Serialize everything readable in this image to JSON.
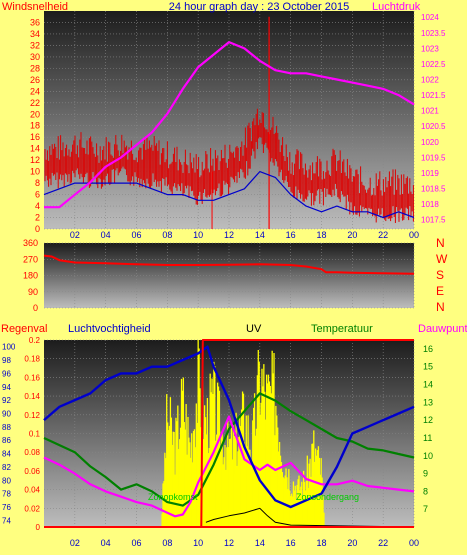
{
  "header": {
    "left_label": "Windsnelheid",
    "title": "24 hour graph day : 23 October 2015",
    "right_label": "Luchtdruk"
  },
  "hour_ticks": [
    "02",
    "04",
    "06",
    "08",
    "10",
    "12",
    "14",
    "16",
    "18",
    "20",
    "22",
    "00"
  ],
  "colors": {
    "background": "#ffff80",
    "wind": "#ff0000",
    "gust_bar": "#dd0000",
    "pressure": "#ff00ff",
    "blue": "#0000cc",
    "temperature": "#008000",
    "dewpoint": "#ff00ff",
    "uv": "#ffff00",
    "solar": "#000000"
  },
  "chart_data": [
    {
      "type": "line",
      "name": "wind-pressure",
      "x_range": [
        0,
        24
      ],
      "y_left": {
        "label": "Windsnelheid",
        "range": [
          0,
          38
        ],
        "ticks": [
          "0",
          "2",
          "4",
          "6",
          "8",
          "10",
          "12",
          "14",
          "16",
          "18",
          "20",
          "22",
          "24",
          "26",
          "28",
          "30",
          "32",
          "34",
          "36"
        ]
      },
      "y_right": {
        "label": "Luchtdruk",
        "range": [
          1017.2,
          1024.2
        ],
        "ticks": [
          "1017.5",
          "1018",
          "1018.5",
          "1019",
          "1019.5",
          "1020",
          "1020.5",
          "1021",
          "1021.5",
          "1022",
          "1022.5",
          "1023",
          "1023.5",
          "1024"
        ]
      },
      "series": [
        {
          "key": "wind_gust",
          "axis": "left",
          "x": [
            0,
            1,
            2,
            3,
            4,
            5,
            6,
            7,
            8,
            9,
            10,
            11,
            12,
            13,
            14,
            15,
            16,
            17,
            18,
            19,
            20,
            21,
            22,
            23,
            24
          ],
          "y": [
            13,
            13,
            14,
            13,
            13,
            14,
            13,
            13,
            12,
            11,
            10,
            11,
            12,
            14,
            20,
            16,
            11,
            10,
            10,
            11,
            8,
            7,
            7,
            7,
            7
          ]
        },
        {
          "key": "wind_avg",
          "axis": "left",
          "x": [
            0,
            1,
            2,
            3,
            4,
            5,
            6,
            7,
            8,
            9,
            10,
            11,
            12,
            13,
            14,
            15,
            16,
            17,
            18,
            19,
            20,
            21,
            22,
            23,
            24
          ],
          "y": [
            6,
            7,
            8,
            8,
            8,
            8,
            8,
            7,
            6,
            6,
            5,
            5,
            6,
            7,
            10,
            9,
            6,
            4,
            3,
            4,
            3,
            3,
            2,
            3,
            2
          ]
        },
        {
          "key": "pressure",
          "axis": "right",
          "x": [
            0,
            1,
            2,
            3,
            4,
            5,
            6,
            7,
            8,
            9,
            10,
            11,
            12,
            13,
            14,
            15,
            16,
            17,
            18,
            19,
            20,
            21,
            22,
            23,
            24
          ],
          "y": [
            1017.9,
            1017.9,
            1018.3,
            1018.7,
            1019.2,
            1019.5,
            1019.9,
            1020.3,
            1020.9,
            1021.7,
            1022.4,
            1022.8,
            1023.2,
            1023.0,
            1022.6,
            1022.3,
            1022.2,
            1022.2,
            1022.1,
            1022.0,
            1021.9,
            1021.8,
            1021.7,
            1021.5,
            1021.2
          ]
        }
      ],
      "gust_max": {
        "x": 14.6,
        "y": 37
      }
    },
    {
      "type": "line",
      "name": "wind-direction",
      "x_range": [
        0,
        24
      ],
      "y_left": {
        "range": [
          0,
          360
        ],
        "ticks": [
          "0",
          "90",
          "180",
          "270",
          "360"
        ]
      },
      "y_right_labels": [
        "N",
        "W",
        "S",
        "E",
        "N"
      ],
      "series": [
        {
          "key": "direction",
          "x": [
            0,
            0.5,
            1,
            2,
            4,
            6,
            8,
            10,
            12,
            14,
            16,
            17,
            18,
            18.3,
            19,
            20,
            22,
            24
          ],
          "y": [
            290,
            285,
            265,
            252,
            248,
            242,
            238,
            238,
            240,
            242,
            238,
            230,
            215,
            198,
            198,
            195,
            192,
            190
          ]
        }
      ]
    },
    {
      "type": "line",
      "name": "rain-humidity-uv-temp",
      "x_range": [
        0,
        24
      ],
      "labels": {
        "rain": "Regenval",
        "humidity": "Luchtvochtigheid",
        "uv": "UV",
        "temperature": "Temperatuur",
        "dewpoint": "Dauwpunt"
      },
      "y_rain": {
        "range": [
          0,
          0.2
        ],
        "ticks": [
          "0",
          "0.02",
          "0.04",
          "0.06",
          "0.08",
          "0.1",
          "0.12",
          "0.14",
          "0.16",
          "0.18",
          "0.2"
        ]
      },
      "y_humidity": {
        "range": [
          73,
          101
        ],
        "ticks": [
          "74",
          "76",
          "78",
          "80",
          "82",
          "84",
          "86",
          "88",
          "90",
          "92",
          "94",
          "96",
          "98",
          "100"
        ]
      },
      "y_temp": {
        "range": [
          6,
          16.5
        ],
        "ticks": [
          "7",
          "8",
          "9",
          "10",
          "11",
          "12",
          "13",
          "14",
          "15",
          "16"
        ]
      },
      "series": [
        {
          "key": "humidity",
          "x": [
            0,
            1,
            2,
            3,
            4,
            5,
            6,
            7,
            8,
            9,
            10,
            10.6,
            11,
            12,
            13,
            14,
            15,
            16,
            17,
            18,
            19,
            20,
            21,
            22,
            23,
            24
          ],
          "y": [
            89,
            91,
            92,
            93,
            95,
            96,
            96,
            97,
            97,
            98,
            99,
            100,
            97,
            92,
            85,
            80,
            77,
            76,
            77,
            78,
            82,
            87,
            88,
            89,
            90,
            91
          ]
        },
        {
          "key": "temperature",
          "x": [
            0,
            1,
            2,
            3,
            4,
            5,
            6,
            7,
            8,
            9,
            10,
            11,
            12,
            13,
            14,
            15,
            16,
            17,
            18,
            19,
            20,
            21,
            22,
            23,
            24
          ],
          "y": [
            11,
            10.6,
            10.2,
            9.4,
            8.8,
            8.1,
            8.4,
            8.0,
            7.4,
            7.2,
            7.8,
            9.5,
            11.5,
            12.5,
            13.5,
            13.1,
            12.5,
            12.0,
            11.5,
            11.0,
            10.8,
            10.4,
            10.3,
            10.1,
            9.9
          ]
        },
        {
          "key": "dewpoint",
          "x": [
            0,
            1,
            2,
            3,
            4,
            5,
            6,
            7,
            8,
            8.5,
            9,
            9.5,
            10,
            11,
            12,
            12.5,
            13,
            14,
            14.5,
            15,
            16,
            17,
            18,
            19,
            20,
            21,
            22,
            23,
            24
          ],
          "y": [
            9.9,
            9.5,
            9.0,
            8.4,
            8.0,
            7.7,
            7.4,
            7.2,
            6.8,
            6.6,
            6.7,
            7.4,
            8.5,
            10.2,
            12.2,
            11.0,
            9.8,
            9.2,
            9.5,
            9.2,
            9.6,
            8.7,
            8.4,
            8.4,
            8.6,
            8.3,
            8.2,
            8.1,
            8.0
          ]
        },
        {
          "key": "rain_total",
          "x": [
            0,
            10.2,
            10.3,
            24
          ],
          "y": [
            0,
            0,
            0.2,
            0.2
          ]
        },
        {
          "key": "uv",
          "x": [
            7.6,
            8,
            8.5,
            9,
            9.5,
            10,
            10.5,
            11,
            11.5,
            12,
            12.5,
            13,
            13.5,
            14,
            14.5,
            15,
            15.5,
            16,
            16.5,
            17,
            17.5,
            18,
            18.2
          ],
          "y": [
            0,
            0.14,
            0.1,
            0.16,
            0.1,
            0.18,
            0.13,
            0.16,
            0.12,
            0.1,
            0.11,
            0.14,
            0.1,
            0.19,
            0.16,
            0.17,
            0.09,
            0.06,
            0.05,
            0.06,
            0.1,
            0.07,
            0
          ]
        },
        {
          "key": "solar",
          "x": [
            10.5,
            11,
            12,
            13,
            14,
            14.5,
            15,
            16,
            24
          ],
          "y": [
            0.005,
            0.008,
            0.012,
            0.015,
            0.02,
            0.012,
            0.005,
            0.002,
            0.0
          ]
        }
      ],
      "annotations": [
        "Zonopkomst",
        "Zonsondergang"
      ]
    }
  ]
}
